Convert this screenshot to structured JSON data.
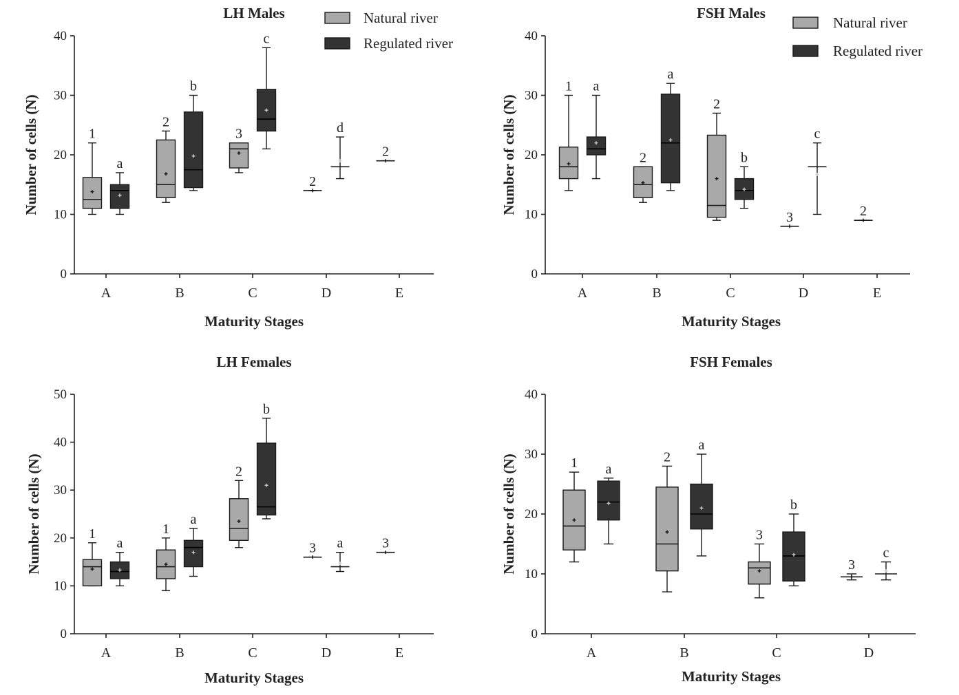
{
  "chart_data": [
    {
      "type": "box",
      "title": "LH Males",
      "xlabel": "Maturity Stages",
      "ylabel": "Number of cells (N)",
      "ylim": [
        0,
        40
      ],
      "yticks": [
        0,
        10,
        20,
        30,
        40
      ],
      "categories": [
        "A",
        "B",
        "C",
        "D",
        "E"
      ],
      "legend": {
        "position": "top-right",
        "entries": [
          "Natural river",
          "Regulated river"
        ]
      },
      "series": [
        {
          "name": "Natural river",
          "color": "#a9a9a9",
          "boxes": [
            {
              "category": "A",
              "min": 10,
              "q1": 11,
              "median": 12.5,
              "q3": 16.2,
              "max": 22,
              "mean": 13.8,
              "label": "1"
            },
            {
              "category": "B",
              "min": 12,
              "q1": 12.8,
              "median": 15,
              "q3": 22.5,
              "max": 24,
              "mean": 16.8,
              "label": "2"
            },
            {
              "category": "C",
              "min": 17,
              "q1": 17.8,
              "median": 21,
              "q3": 22,
              "max": 22,
              "mean": 20.3,
              "label": "3"
            },
            {
              "category": "D",
              "min": 14,
              "q1": 14,
              "median": 14,
              "q3": 14,
              "max": 14,
              "mean": 14,
              "label": "2"
            },
            {
              "category": "E",
              "min": 19,
              "q1": 19,
              "median": 19,
              "q3": 19,
              "max": 19,
              "mean": 19,
              "label": "2"
            }
          ]
        },
        {
          "name": "Regulated river",
          "color": "#333333",
          "boxes": [
            {
              "category": "A",
              "min": 10,
              "q1": 11,
              "median": 14,
              "q3": 15,
              "max": 17,
              "mean": 13.2,
              "label": "a"
            },
            {
              "category": "B",
              "min": 14,
              "q1": 14.5,
              "median": 17.5,
              "q3": 27.2,
              "max": 30,
              "mean": 19.8,
              "label": "b"
            },
            {
              "category": "C",
              "min": 21,
              "q1": 24,
              "median": 26,
              "q3": 31,
              "max": 38,
              "mean": 27.5,
              "label": "c"
            },
            {
              "category": "D",
              "min": 16,
              "q1": 18,
              "median": 18,
              "q3": 18,
              "max": 23,
              "mean": 19,
              "label": "d"
            }
          ]
        }
      ]
    },
    {
      "type": "box",
      "title": "FSH Males",
      "xlabel": "Maturity Stages",
      "ylabel": "Number of cells (N)",
      "ylim": [
        0,
        40
      ],
      "yticks": [
        0,
        10,
        20,
        30,
        40
      ],
      "categories": [
        "A",
        "B",
        "C",
        "D",
        "E"
      ],
      "legend": {
        "position": "top-right",
        "entries": [
          "Natural river",
          "Regulated river"
        ]
      },
      "series": [
        {
          "name": "Natural river",
          "color": "#a9a9a9",
          "boxes": [
            {
              "category": "A",
              "min": 14,
              "q1": 16,
              "median": 18,
              "q3": 21.3,
              "max": 30,
              "mean": 18.5,
              "label": "1"
            },
            {
              "category": "B",
              "min": 12,
              "q1": 12.8,
              "median": 15,
              "q3": 18,
              "max": 18,
              "mean": 15.3,
              "label": "2"
            },
            {
              "category": "C",
              "min": 9,
              "q1": 9.5,
              "median": 11.5,
              "q3": 23.3,
              "max": 27,
              "mean": 16,
              "label": "2"
            },
            {
              "category": "D",
              "min": 8,
              "q1": 8,
              "median": 8,
              "q3": 8,
              "max": 8,
              "mean": 8,
              "label": "3"
            },
            {
              "category": "E",
              "min": 9,
              "q1": 9,
              "median": 9,
              "q3": 9,
              "max": 9,
              "mean": 9,
              "label": "2"
            }
          ]
        },
        {
          "name": "Regulated river",
          "color": "#333333",
          "boxes": [
            {
              "category": "A",
              "min": 16,
              "q1": 20,
              "median": 21,
              "q3": 23,
              "max": 30,
              "mean": 22,
              "label": "a"
            },
            {
              "category": "B",
              "min": 14,
              "q1": 15.3,
              "median": 22,
              "q3": 30.2,
              "max": 32,
              "mean": 22.5,
              "label": "a"
            },
            {
              "category": "C",
              "min": 11,
              "q1": 12.5,
              "median": 14,
              "q3": 16,
              "max": 18,
              "mean": 14.2,
              "label": "b"
            },
            {
              "category": "D",
              "min": 10,
              "q1": 18,
              "median": 18,
              "q3": 18,
              "max": 22,
              "mean": 16.7,
              "label": "c"
            }
          ]
        }
      ]
    },
    {
      "type": "box",
      "title": "LH Females",
      "xlabel": "Maturity Stages",
      "ylabel": "Number of cells (N)",
      "ylim": [
        0,
        50
      ],
      "yticks": [
        0,
        10,
        20,
        30,
        40,
        50
      ],
      "categories": [
        "A",
        "B",
        "C",
        "D",
        "E"
      ],
      "series": [
        {
          "name": "Natural river",
          "color": "#a9a9a9",
          "boxes": [
            {
              "category": "A",
              "min": 10,
              "q1": 10,
              "median": 14,
              "q3": 15.5,
              "max": 19,
              "mean": 13.5,
              "label": "1"
            },
            {
              "category": "B",
              "min": 9,
              "q1": 11.5,
              "median": 14,
              "q3": 17.5,
              "max": 20,
              "mean": 14.5,
              "label": "1"
            },
            {
              "category": "C",
              "min": 18,
              "q1": 19.5,
              "median": 22,
              "q3": 28.2,
              "max": 32,
              "mean": 23.5,
              "label": "2"
            },
            {
              "category": "D",
              "min": 16,
              "q1": 16,
              "median": 16,
              "q3": 16,
              "max": 16,
              "mean": 16,
              "label": "3"
            },
            {
              "category": "E",
              "min": 17,
              "q1": 17,
              "median": 17,
              "q3": 17,
              "max": 17,
              "mean": 17,
              "label": "3"
            }
          ]
        },
        {
          "name": "Regulated river",
          "color": "#333333",
          "boxes": [
            {
              "category": "A",
              "min": 10,
              "q1": 11.5,
              "median": 13,
              "q3": 15,
              "max": 17,
              "mean": 13.3,
              "label": "a"
            },
            {
              "category": "B",
              "min": 12,
              "q1": 14,
              "median": 18,
              "q3": 19.5,
              "max": 22,
              "mean": 17,
              "label": "a"
            },
            {
              "category": "C",
              "min": 24,
              "q1": 24.8,
              "median": 26.5,
              "q3": 39.8,
              "max": 45,
              "mean": 31,
              "label": "b"
            },
            {
              "category": "D",
              "min": 13,
              "q1": 14,
              "median": 14,
              "q3": 14,
              "max": 17,
              "mean": 14.7,
              "label": "a"
            }
          ]
        }
      ]
    },
    {
      "type": "box",
      "title": "FSH Females",
      "xlabel": "Maturity Stages",
      "ylabel": "Number of cells (N)",
      "ylim": [
        0,
        40
      ],
      "yticks": [
        0,
        10,
        20,
        30,
        40
      ],
      "categories": [
        "A",
        "B",
        "C",
        "D"
      ],
      "series": [
        {
          "name": "Natural river",
          "color": "#a9a9a9",
          "boxes": [
            {
              "category": "A",
              "min": 12,
              "q1": 14,
              "median": 18,
              "q3": 24,
              "max": 27,
              "mean": 19,
              "label": "1"
            },
            {
              "category": "B",
              "min": 7,
              "q1": 10.5,
              "median": 15,
              "q3": 24.5,
              "max": 28,
              "mean": 17,
              "label": "2"
            },
            {
              "category": "C",
              "min": 6,
              "q1": 8.3,
              "median": 11,
              "q3": 12,
              "max": 15,
              "mean": 10.5,
              "label": "3"
            },
            {
              "category": "D",
              "min": 9,
              "q1": 9.5,
              "median": 9.5,
              "q3": 9.5,
              "max": 10,
              "mean": 9.5,
              "label": "3"
            }
          ]
        },
        {
          "name": "Regulated river",
          "color": "#333333",
          "boxes": [
            {
              "category": "A",
              "min": 15,
              "q1": 19,
              "median": 22,
              "q3": 25.5,
              "max": 26,
              "mean": 21.8,
              "label": "a"
            },
            {
              "category": "B",
              "min": 13,
              "q1": 17.5,
              "median": 20,
              "q3": 25,
              "max": 30,
              "mean": 21,
              "label": "a"
            },
            {
              "category": "C",
              "min": 8,
              "q1": 8.8,
              "median": 13,
              "q3": 17,
              "max": 20,
              "mean": 13.2,
              "label": "b"
            },
            {
              "category": "D",
              "min": 9,
              "q1": 10,
              "median": 10,
              "q3": 10,
              "max": 12,
              "mean": 10.5,
              "label": "c"
            }
          ]
        }
      ]
    }
  ]
}
